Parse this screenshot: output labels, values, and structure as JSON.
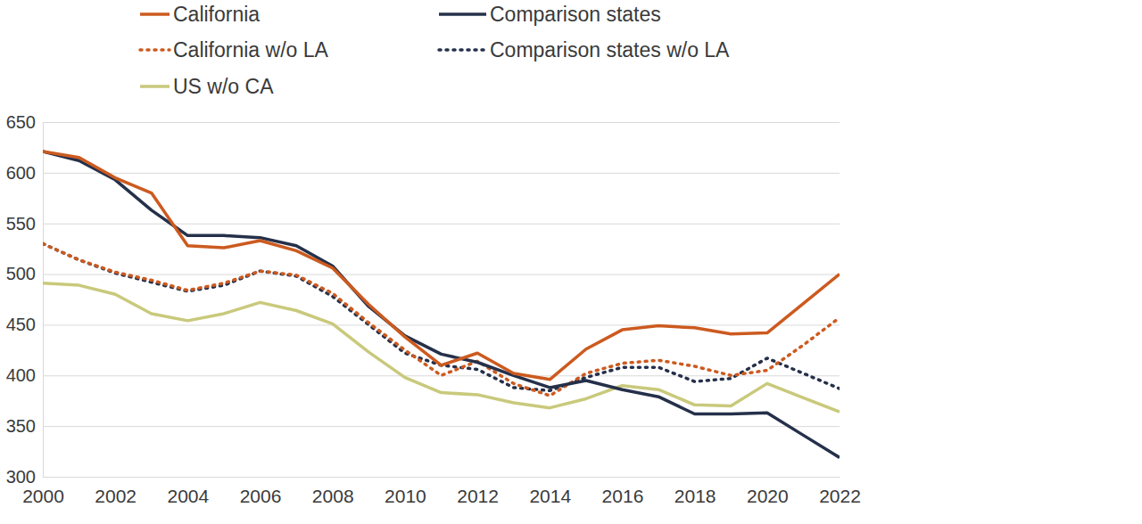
{
  "chart_data": {
    "type": "line",
    "x": [
      2000,
      2001,
      2002,
      2003,
      2004,
      2005,
      2006,
      2007,
      2008,
      2009,
      2010,
      2011,
      2012,
      2013,
      2014,
      2015,
      2016,
      2017,
      2018,
      2019,
      2020,
      2021,
      2022
    ],
    "xlim": [
      2000,
      2022
    ],
    "xticks": [
      2000,
      2002,
      2004,
      2006,
      2008,
      2010,
      2012,
      2014,
      2016,
      2018,
      2020,
      2022
    ],
    "ylim": [
      300,
      650
    ],
    "yticks": [
      300,
      350,
      400,
      450,
      500,
      550,
      600,
      650
    ],
    "grid": true,
    "legend": "top",
    "series": [
      {
        "name": "California",
        "color": "#cc5a1f",
        "line_style": "solid",
        "values": [
          621,
          615,
          595,
          580,
          528,
          526,
          533,
          523,
          506,
          470,
          438,
          410,
          422,
          402,
          396,
          426,
          445,
          449,
          447,
          441,
          442,
          471,
          500
        ]
      },
      {
        "name": "Comparison states",
        "color": "#25304a",
        "line_style": "solid",
        "values": [
          621,
          612,
          593,
          563,
          538,
          538,
          536,
          528,
          508,
          468,
          439,
          421,
          413,
          400,
          388,
          395,
          386,
          379,
          362,
          362,
          363,
          341,
          319
        ]
      },
      {
        "name": "California w/o LA",
        "color": "#cc5a1f",
        "line_style": "dotted",
        "values": [
          530,
          514,
          502,
          494,
          484,
          491,
          503,
          499,
          481,
          452,
          425,
          400,
          414,
          392,
          380,
          402,
          412,
          415,
          409,
          400,
          405,
          430,
          457
        ]
      },
      {
        "name": "Comparison states w/o LA",
        "color": "#25304a",
        "line_style": "dotted",
        "values": [
          530,
          514,
          501,
          492,
          483,
          489,
          503,
          498,
          478,
          450,
          422,
          410,
          406,
          388,
          385,
          398,
          408,
          408,
          394,
          397,
          417,
          402,
          387
        ]
      },
      {
        "name": "US w/o CA",
        "color": "#c9c97c",
        "line_style": "solid",
        "values": [
          491,
          489,
          480,
          461,
          454,
          461,
          472,
          464,
          451,
          423,
          398,
          383,
          381,
          373,
          368,
          377,
          390,
          386,
          371,
          370,
          392,
          378,
          364
        ]
      }
    ]
  }
}
